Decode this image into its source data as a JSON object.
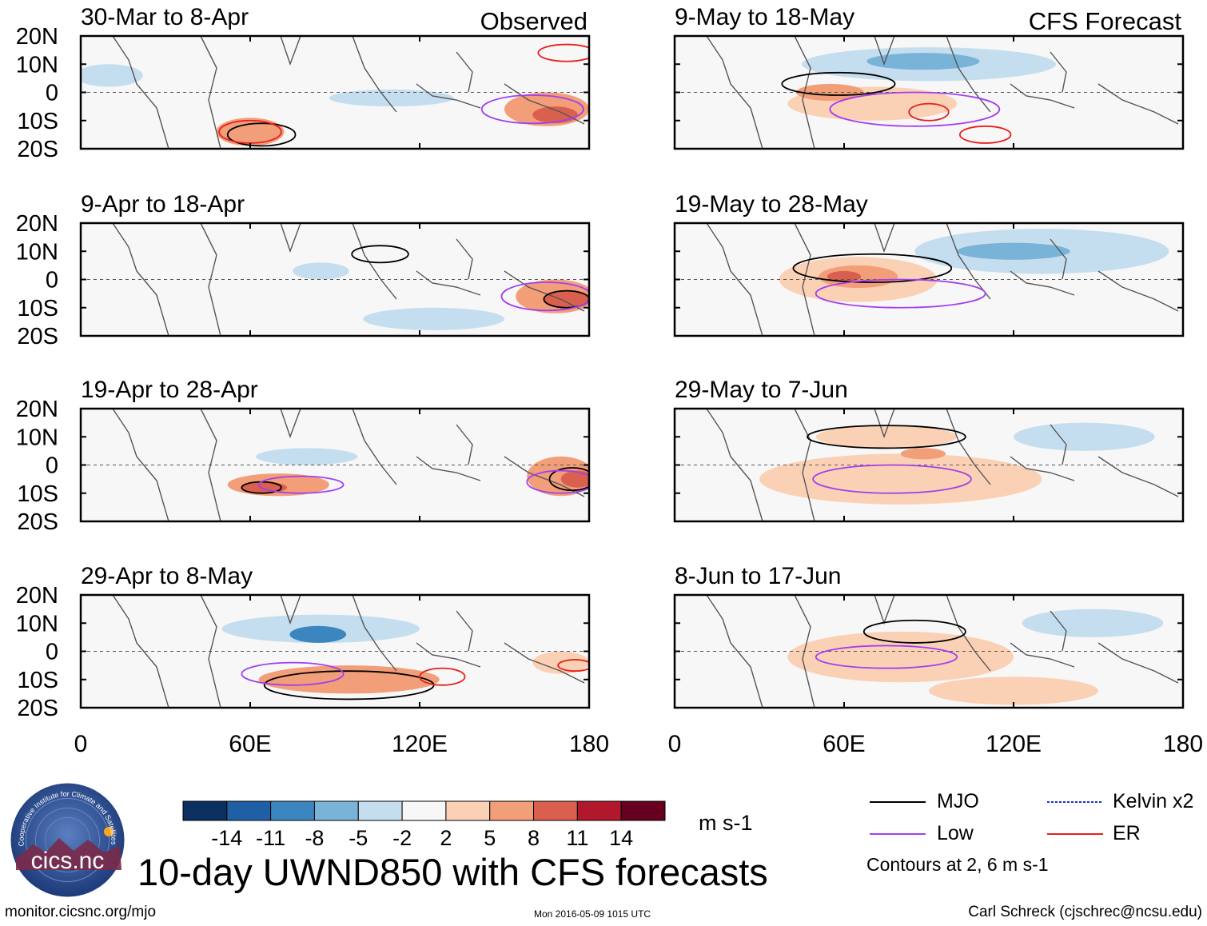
{
  "title": "10-day UWND850 with CFS forecasts",
  "column_labels": {
    "observed": "Observed",
    "forecast": "CFS Forecast"
  },
  "footer": {
    "url": "monitor.cicsnc.org/mjo",
    "timestamp": "Mon 2016-05-09 1015 UTC",
    "author": "Carl Schreck (cjschrec@ncsu.edu)"
  },
  "logo": {
    "text": "cics.nc",
    "ring_text": "Cooperative Institute for Climate and Satellites"
  },
  "colorbar": {
    "units": "m s-1",
    "tick_labels": [
      "-14",
      "-11",
      "-8",
      "-5",
      "-2",
      "2",
      "5",
      "8",
      "11",
      "14"
    ],
    "colors": [
      "#0b2f5f",
      "#1f5fa5",
      "#3c86bf",
      "#7ab3d8",
      "#c5deef",
      "#f7f7f7",
      "#fbd1b6",
      "#f29e78",
      "#d9604e",
      "#b2182b",
      "#67001f"
    ]
  },
  "legend": {
    "items": [
      {
        "label": "MJO",
        "color": "#000000",
        "style": "solid"
      },
      {
        "label": "Kelvin x2",
        "color": "#1a2fd6",
        "style": "dashed"
      },
      {
        "label": "Low",
        "color": "#a23ff0",
        "style": "solid"
      },
      {
        "label": "ER",
        "color": "#e8201c",
        "style": "solid"
      }
    ],
    "contours_note": "Contours at 2, 6 m s-1"
  },
  "chart_data": {
    "type": "heatmap",
    "variable": "850-hPa zonal wind anomaly",
    "x_axis": {
      "range": [
        0,
        180
      ],
      "tick_labels": [
        "0",
        "60E",
        "120E",
        "180"
      ]
    },
    "y_axis": {
      "range": [
        -20,
        20
      ],
      "tick_labels": [
        "20N",
        "10N",
        "0",
        "10S",
        "20S"
      ]
    },
    "panels": [
      {
        "id": "obs1",
        "label": "30-Mar to 8-Apr",
        "column": "observed",
        "blobs": [
          {
            "lon": 110,
            "lat": -2,
            "rlon": 22,
            "rlat": 3,
            "level": -2
          },
          {
            "lon": 60,
            "lat": -14,
            "rlon": 12,
            "rlat": 5,
            "level": 5
          },
          {
            "lon": 165,
            "lat": -6,
            "rlon": 15,
            "rlat": 6,
            "level": 5
          },
          {
            "lon": 168,
            "lat": -8,
            "rlon": 8,
            "rlat": 3,
            "level": 8
          },
          {
            "lon": 10,
            "lat": 6,
            "rlon": 12,
            "rlat": 4,
            "level": -2
          }
        ],
        "contours": [
          {
            "type": "MJO",
            "lon": 64,
            "lat": -15,
            "rlon": 12,
            "rlat": 4
          },
          {
            "type": "Low",
            "lon": 160,
            "lat": -6,
            "rlon": 18,
            "rlat": 5
          },
          {
            "type": "ER",
            "lon": 60,
            "lat": -14,
            "rlon": 11,
            "rlat": 4
          },
          {
            "type": "ER",
            "lon": 172,
            "lat": 14,
            "rlon": 10,
            "rlat": 3
          }
        ]
      },
      {
        "id": "obs2",
        "label": "9-Apr to 18-Apr",
        "column": "observed",
        "blobs": [
          {
            "lon": 85,
            "lat": 3,
            "rlon": 10,
            "rlat": 3,
            "level": -2
          },
          {
            "lon": 168,
            "lat": -6,
            "rlon": 14,
            "rlat": 6,
            "level": 5
          },
          {
            "lon": 172,
            "lat": -7,
            "rlon": 8,
            "rlat": 3,
            "level": 8
          },
          {
            "lon": 125,
            "lat": -14,
            "rlon": 25,
            "rlat": 4,
            "level": -2
          }
        ],
        "contours": [
          {
            "type": "MJO",
            "lon": 106,
            "lat": 9,
            "rlon": 10,
            "rlat": 3
          },
          {
            "type": "MJO",
            "lon": 172,
            "lat": -7,
            "rlon": 8,
            "rlat": 3
          },
          {
            "type": "Low",
            "lon": 165,
            "lat": -6,
            "rlon": 16,
            "rlat": 5
          }
        ]
      },
      {
        "id": "obs3",
        "label": "19-Apr to 28-Apr",
        "column": "observed",
        "blobs": [
          {
            "lon": 70,
            "lat": -7,
            "rlon": 18,
            "rlat": 4,
            "level": 5
          },
          {
            "lon": 65,
            "lat": -8,
            "rlon": 8,
            "rlat": 2,
            "level": 8
          },
          {
            "lon": 170,
            "lat": -4,
            "rlon": 12,
            "rlat": 7,
            "level": 5
          },
          {
            "lon": 176,
            "lat": -5,
            "rlon": 6,
            "rlat": 3,
            "level": 8
          },
          {
            "lon": 80,
            "lat": 3,
            "rlon": 18,
            "rlat": 3,
            "level": -2
          }
        ],
        "contours": [
          {
            "type": "MJO",
            "lon": 64,
            "lat": -8,
            "rlon": 7,
            "rlat": 2
          },
          {
            "type": "MJO",
            "lon": 174,
            "lat": -5,
            "rlon": 8,
            "rlat": 4
          },
          {
            "type": "Low",
            "lon": 78,
            "lat": -7,
            "rlon": 15,
            "rlat": 3
          },
          {
            "type": "Low",
            "lon": 170,
            "lat": -6,
            "rlon": 12,
            "rlat": 4
          }
        ]
      },
      {
        "id": "obs4",
        "label": "29-Apr to 8-May",
        "column": "observed",
        "blobs": [
          {
            "lon": 85,
            "lat": 8,
            "rlon": 35,
            "rlat": 5,
            "level": -2
          },
          {
            "lon": 84,
            "lat": 6,
            "rlon": 10,
            "rlat": 3,
            "level": -8
          },
          {
            "lon": 95,
            "lat": -10,
            "rlon": 32,
            "rlat": 5,
            "level": 5
          },
          {
            "lon": 170,
            "lat": -4,
            "rlon": 10,
            "rlat": 4,
            "level": 2
          }
        ],
        "contours": [
          {
            "type": "MJO",
            "lon": 95,
            "lat": -12,
            "rlon": 30,
            "rlat": 5
          },
          {
            "type": "Low",
            "lon": 75,
            "lat": -8,
            "rlon": 18,
            "rlat": 4
          },
          {
            "type": "ER",
            "lon": 128,
            "lat": -9,
            "rlon": 8,
            "rlat": 3
          },
          {
            "type": "ER",
            "lon": 175,
            "lat": -5,
            "rlon": 6,
            "rlat": 2
          }
        ]
      },
      {
        "id": "fc1",
        "label": "9-May to 18-May",
        "column": "forecast",
        "blobs": [
          {
            "lon": 90,
            "lat": 10,
            "rlon": 45,
            "rlat": 6,
            "level": -2
          },
          {
            "lon": 88,
            "lat": 11,
            "rlon": 20,
            "rlat": 3,
            "level": -5
          },
          {
            "lon": 70,
            "lat": -4,
            "rlon": 30,
            "rlat": 6,
            "level": 2
          },
          {
            "lon": 55,
            "lat": 0,
            "rlon": 12,
            "rlat": 3,
            "level": 5
          }
        ],
        "contours": [
          {
            "type": "MJO",
            "lon": 58,
            "lat": 3,
            "rlon": 20,
            "rlat": 4
          },
          {
            "type": "Low",
            "lon": 85,
            "lat": -6,
            "rlon": 30,
            "rlat": 6
          },
          {
            "type": "ER",
            "lon": 90,
            "lat": -7,
            "rlon": 7,
            "rlat": 3
          },
          {
            "type": "ER",
            "lon": 110,
            "lat": -15,
            "rlon": 9,
            "rlat": 3
          }
        ]
      },
      {
        "id": "fc2",
        "label": "19-May to 28-May",
        "column": "forecast",
        "blobs": [
          {
            "lon": 130,
            "lat": 10,
            "rlon": 45,
            "rlat": 8,
            "level": -2
          },
          {
            "lon": 120,
            "lat": 10,
            "rlon": 20,
            "rlat": 3,
            "level": -5
          },
          {
            "lon": 65,
            "lat": 0,
            "rlon": 28,
            "rlat": 8,
            "level": 2
          },
          {
            "lon": 65,
            "lat": 1,
            "rlon": 14,
            "rlat": 4,
            "level": 5
          },
          {
            "lon": 60,
            "lat": 1,
            "rlon": 6,
            "rlat": 2,
            "level": 8
          }
        ],
        "contours": [
          {
            "type": "MJO",
            "lon": 70,
            "lat": 4,
            "rlon": 28,
            "rlat": 5
          },
          {
            "type": "Low",
            "lon": 80,
            "lat": -5,
            "rlon": 30,
            "rlat": 5
          }
        ]
      },
      {
        "id": "fc3",
        "label": "29-May to 7-Jun",
        "column": "forecast",
        "blobs": [
          {
            "lon": 80,
            "lat": -5,
            "rlon": 50,
            "rlat": 9,
            "level": 2
          },
          {
            "lon": 75,
            "lat": 10,
            "rlon": 25,
            "rlat": 4,
            "level": 2
          },
          {
            "lon": 88,
            "lat": 4,
            "rlon": 8,
            "rlat": 2,
            "level": 5
          },
          {
            "lon": 145,
            "lat": 10,
            "rlon": 25,
            "rlat": 5,
            "level": -2
          }
        ],
        "contours": [
          {
            "type": "MJO",
            "lon": 75,
            "lat": 10,
            "rlon": 28,
            "rlat": 4
          },
          {
            "type": "Low",
            "lon": 77,
            "lat": -5,
            "rlon": 28,
            "rlat": 5
          }
        ]
      },
      {
        "id": "fc4",
        "label": "8-Jun to 17-Jun",
        "column": "forecast",
        "blobs": [
          {
            "lon": 80,
            "lat": -2,
            "rlon": 40,
            "rlat": 9,
            "level": 2
          },
          {
            "lon": 120,
            "lat": -14,
            "rlon": 30,
            "rlat": 5,
            "level": 2
          },
          {
            "lon": 148,
            "lat": 10,
            "rlon": 25,
            "rlat": 5,
            "level": -2
          }
        ],
        "contours": [
          {
            "type": "MJO",
            "lon": 85,
            "lat": 7,
            "rlon": 18,
            "rlat": 4
          },
          {
            "type": "Low",
            "lon": 75,
            "lat": -2,
            "rlon": 25,
            "rlat": 4
          }
        ]
      }
    ]
  }
}
